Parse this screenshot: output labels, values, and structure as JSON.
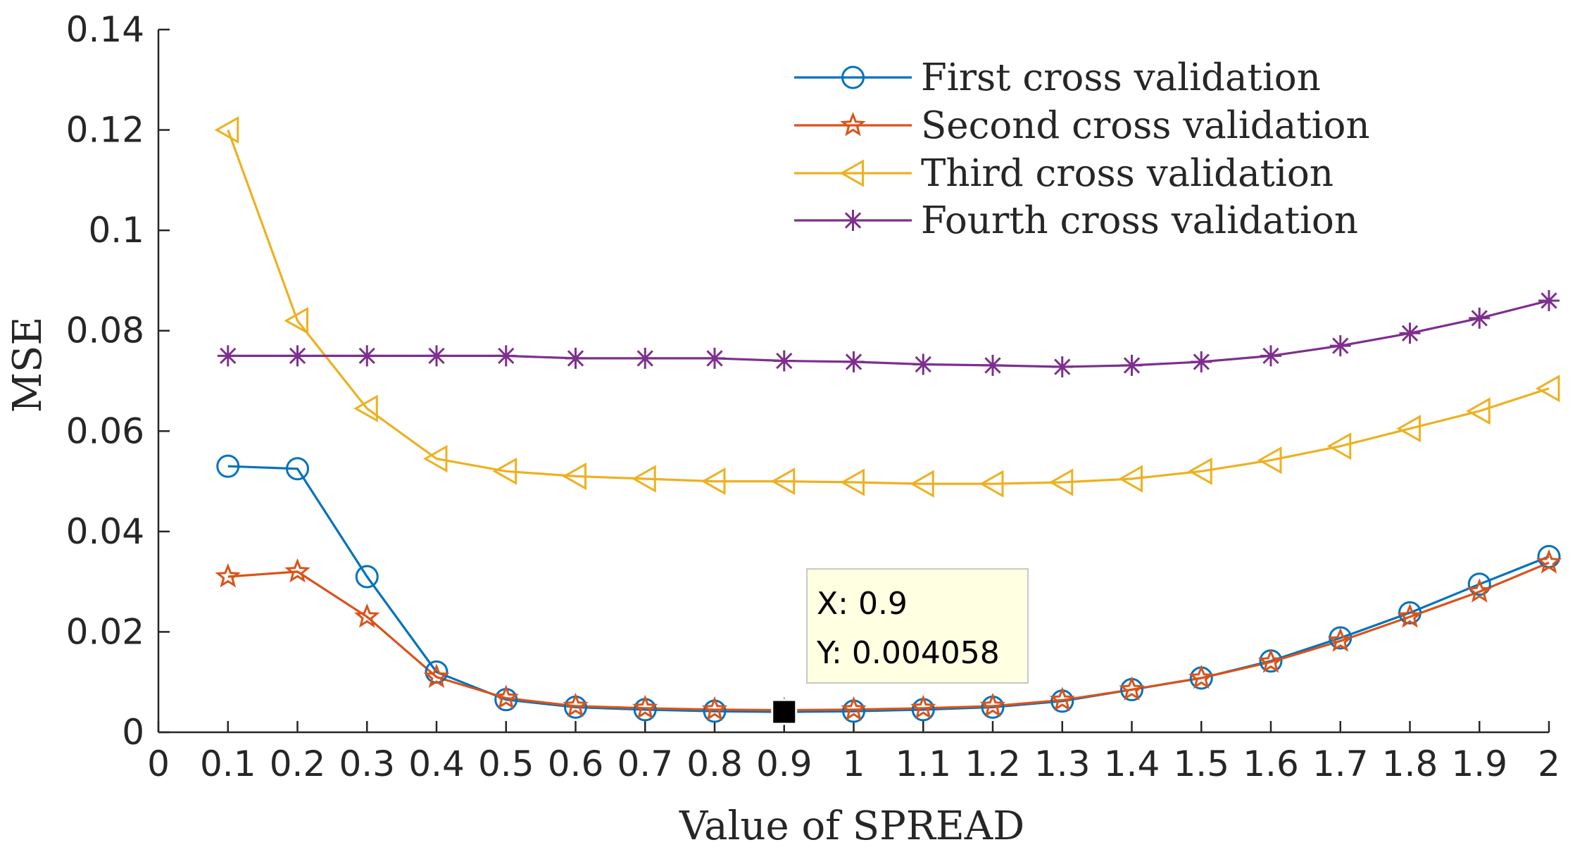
{
  "chart_data": {
    "type": "line",
    "title": "",
    "xlabel": "Value of SPREAD",
    "ylabel": "MSE",
    "xlim": [
      0,
      2
    ],
    "ylim": [
      0,
      0.14
    ],
    "xticks": [
      0,
      0.1,
      0.2,
      0.3,
      0.4,
      0.5,
      0.6,
      0.7,
      0.8,
      0.9,
      1,
      1.1,
      1.2,
      1.3,
      1.4,
      1.5,
      1.6,
      1.7,
      1.8,
      1.9,
      2
    ],
    "xtick_labels": [
      "0",
      "0.1",
      "0.2",
      "0.3",
      "0.4",
      "0.5",
      "0.6",
      "0.7",
      "0.8",
      "0.9",
      "1",
      "1.1",
      "1.2",
      "1.3",
      "1.4",
      "1.5",
      "1.6",
      "1.7",
      "1.8",
      "1.9",
      "2"
    ],
    "yticks": [
      0,
      0.02,
      0.04,
      0.06,
      0.08,
      0.1,
      0.12,
      0.14
    ],
    "ytick_labels": [
      "0",
      "0.02",
      "0.04",
      "0.06",
      "0.08",
      "0.1",
      "0.12",
      "0.14"
    ],
    "grid": false,
    "legend_position": "top-right",
    "x": [
      0.1,
      0.2,
      0.3,
      0.4,
      0.5,
      0.6,
      0.7,
      0.8,
      0.9,
      1.0,
      1.1,
      1.2,
      1.3,
      1.4,
      1.5,
      1.6,
      1.7,
      1.8,
      1.9,
      2.0
    ],
    "series": [
      {
        "name": "First cross validation",
        "color": "#0072BD",
        "marker": "circle",
        "values": [
          0.053,
          0.0525,
          0.031,
          0.012,
          0.0065,
          0.005,
          0.0045,
          0.0042,
          0.004058,
          0.0042,
          0.0045,
          0.005,
          0.0062,
          0.0085,
          0.0108,
          0.0142,
          0.0188,
          0.0238,
          0.0295,
          0.035
        ]
      },
      {
        "name": "Second cross validation",
        "color": "#D95319",
        "marker": "star",
        "values": [
          0.031,
          0.032,
          0.023,
          0.011,
          0.0068,
          0.0052,
          0.0048,
          0.0045,
          0.0044,
          0.0045,
          0.0048,
          0.0052,
          0.0064,
          0.0085,
          0.0108,
          0.014,
          0.0182,
          0.023,
          0.028,
          0.0338
        ]
      },
      {
        "name": "Third cross validation",
        "color": "#EDB120",
        "marker": "triangle-left",
        "values": [
          0.12,
          0.082,
          0.0645,
          0.0545,
          0.052,
          0.051,
          0.0505,
          0.05,
          0.05,
          0.0498,
          0.0495,
          0.0495,
          0.0498,
          0.0505,
          0.052,
          0.0542,
          0.057,
          0.0605,
          0.064,
          0.0685
        ]
      },
      {
        "name": "Fourth cross validation",
        "color": "#7E2F8E",
        "marker": "asterisk",
        "values": [
          0.075,
          0.075,
          0.075,
          0.075,
          0.075,
          0.0745,
          0.0745,
          0.0745,
          0.074,
          0.0738,
          0.0733,
          0.0731,
          0.0728,
          0.0731,
          0.0738,
          0.075,
          0.077,
          0.0795,
          0.0825,
          0.086
        ]
      }
    ],
    "datatip": {
      "x": 0.9,
      "y": 0.004058,
      "x_label": "X: 0.9",
      "y_label": "Y: 0.004058"
    }
  }
}
